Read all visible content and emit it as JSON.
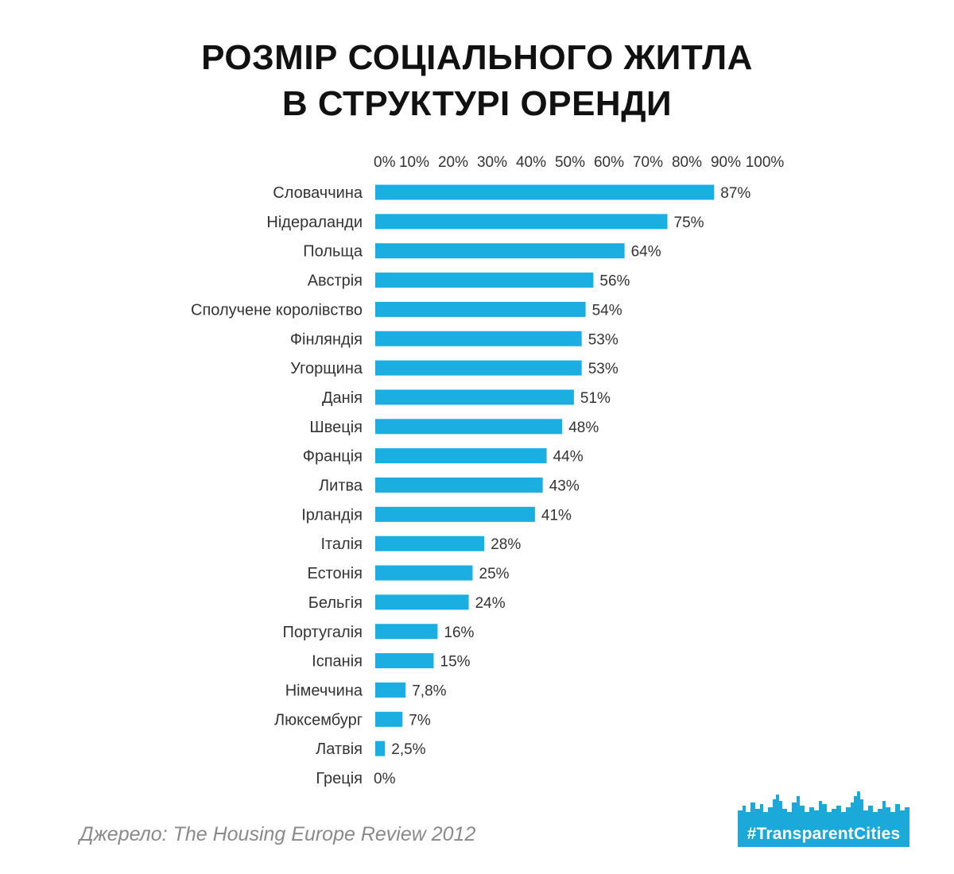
{
  "title": {
    "line1": "РОЗМІР СОЦІАЛЬНОГО ЖИТЛА",
    "line2": "В СТРУКТУРІ ОРЕНДИ"
  },
  "source": "Джерело: The Housing Europe Review 2012",
  "logo": {
    "text": "#TransparentCities",
    "icon": "city-skyline-icon"
  },
  "colors": {
    "bar": "#1aafe0",
    "title": "#111111",
    "source": "#8a8a8a",
    "label": "#333333",
    "logo": "#1aa9d8"
  },
  "chart_data": {
    "type": "bar",
    "orientation": "horizontal",
    "xlim": [
      0,
      100
    ],
    "x_tick_labels": [
      "0%",
      "10%",
      "20%",
      "30%",
      "40%",
      "50%",
      "60%",
      "70%",
      "80%",
      "90%",
      "100%"
    ],
    "x_ticks": [
      0,
      10,
      20,
      30,
      40,
      50,
      60,
      70,
      80,
      90,
      100
    ],
    "axis_position": "top",
    "grid": false,
    "categories": [
      "Словаччина",
      "Нідераланди",
      "Польща",
      "Австрія",
      "Сполучене королівство",
      "Фінляндія",
      "Угорщина",
      "Данія",
      "Швеція",
      "Франція",
      "Литва",
      "Ірландія",
      "Італія",
      "Естонія",
      "Бельгія",
      "Португалія",
      "Іспанія",
      "Німеччина",
      "Люксембург",
      "Латвія",
      "Греція"
    ],
    "values": [
      87,
      75,
      64,
      56,
      54,
      53,
      53,
      51,
      48,
      44,
      43,
      41,
      28,
      25,
      24,
      16,
      15,
      7.8,
      7,
      2.5,
      0
    ],
    "value_labels": [
      "87%",
      "75%",
      "64%",
      "56%",
      "54%",
      "53%",
      "53%",
      "51%",
      "48%",
      "44%",
      "43%",
      "41%",
      "28%",
      "25%",
      "24%",
      "16%",
      "15%",
      "7,8%",
      "7%",
      "2,5%",
      "0%"
    ]
  }
}
